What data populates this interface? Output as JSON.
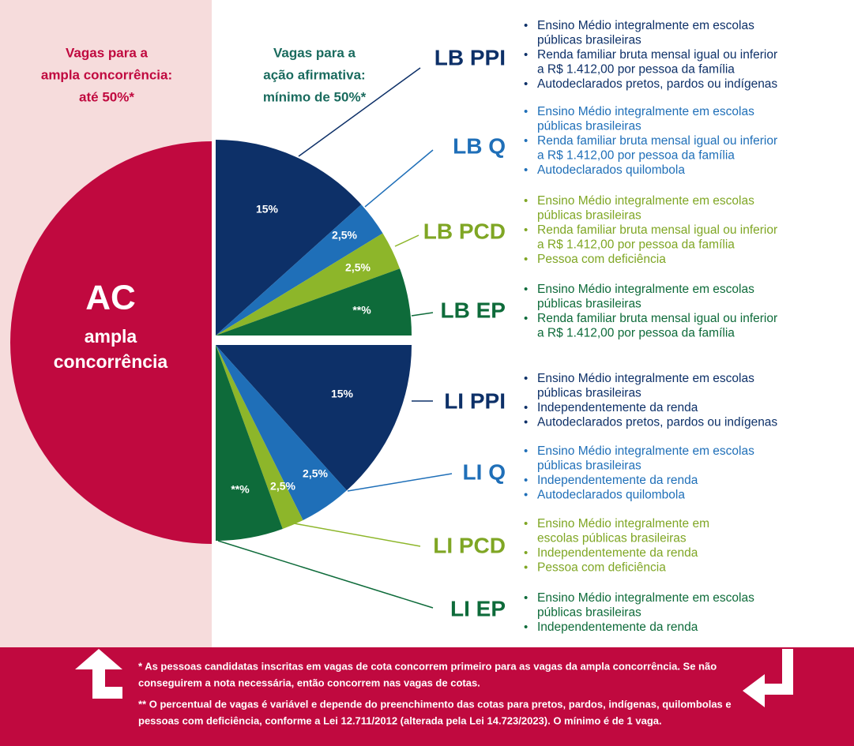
{
  "left_header": [
    "Vagas para a",
    "ampla concorrência:",
    "até 50%*"
  ],
  "right_header": [
    "Vagas para a",
    "ação afirmativa:",
    "mínimo de 50%*"
  ],
  "ac": {
    "title": "AC",
    "subtitle": [
      "ampla",
      "concorrência"
    ]
  },
  "slice_labels": [
    "15%",
    "2,5%",
    "2,5%",
    "**%",
    "15%",
    "2,5%",
    "2,5%",
    "**%"
  ],
  "groups": [
    {
      "name": "LB PPI",
      "items": [
        [
          "Ensino Médio integralmente em escolas",
          "públicas brasileiras"
        ],
        [
          "Renda familiar bruta mensal igual ou inferior",
          "a R$ 1.412,00 por pessoa da família"
        ],
        [
          "Autodeclarados pretos, pardos ou indígenas"
        ]
      ]
    },
    {
      "name": "LB Q",
      "items": [
        [
          "Ensino Médio integralmente em escolas",
          "públicas brasileiras"
        ],
        [
          "Renda familiar bruta mensal igual ou inferior",
          "a R$ 1.412,00 por pessoa da família"
        ],
        [
          "Autodeclarados quilombola"
        ]
      ]
    },
    {
      "name": "LB PCD",
      "items": [
        [
          "Ensino Médio integralmente em escolas",
          "públicas brasileiras"
        ],
        [
          "Renda familiar bruta mensal igual ou inferior",
          "a R$ 1.412,00 por pessoa da família"
        ],
        [
          "Pessoa com deficiência"
        ]
      ]
    },
    {
      "name": "LB EP",
      "items": [
        [
          "Ensino Médio integralmente em escolas",
          "públicas brasileiras"
        ],
        [
          "Renda familiar bruta mensal igual ou inferior",
          "a R$ 1.412,00 por pessoa da família"
        ]
      ]
    },
    {
      "name": "LI PPI",
      "items": [
        [
          "Ensino Médio integralmente em escolas",
          "públicas brasileiras"
        ],
        [
          "Independentemente da renda"
        ],
        [
          "Autodeclarados pretos, pardos ou indígenas"
        ]
      ]
    },
    {
      "name": "LI Q",
      "items": [
        [
          "Ensino Médio integralmente em escolas",
          "públicas brasileiras"
        ],
        [
          "Independentemente da renda"
        ],
        [
          "Autodeclarados quilombola"
        ]
      ]
    },
    {
      "name": "LI PCD",
      "items": [
        [
          "Ensino Médio integralmente em",
          "escolas públicas brasileiras"
        ],
        [
          "Independentemente da renda"
        ],
        [
          "Pessoa com deficiência"
        ]
      ]
    },
    {
      "name": "LI EP",
      "items": [
        [
          "Ensino Médio integralmente em escolas",
          "públicas brasileiras"
        ],
        [
          "Independentemente da renda"
        ]
      ]
    }
  ],
  "footnotes": [
    [
      "* As pessoas candidatas inscritas em vagas de cota concorrem primeiro para as vagas da ampla concorrência. Se não",
      "conseguirem a nota necessária, então concorrem nas vagas de cotas."
    ],
    [
      "** O percentual de vagas é variável e depende do preenchimento das cotas para pretos, pardos, indígenas, quilombolas e",
      "pessoas com deficiência, conforme a Lei 12.711/2012 (alterada pela Lei 14.723/2023). O mínimo é de 1 vaga."
    ]
  ]
}
